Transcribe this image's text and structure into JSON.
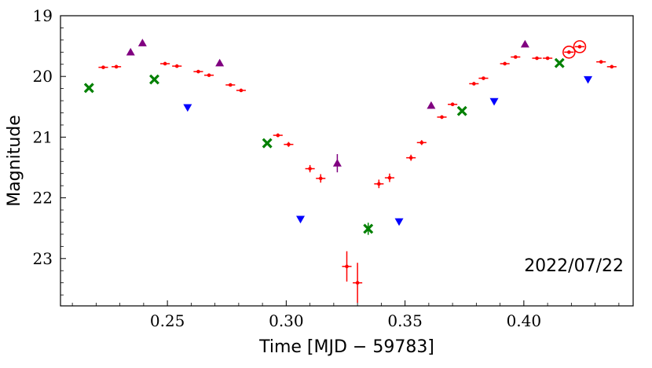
{
  "chart_data": {
    "type": "scatter",
    "title": "",
    "xlabel": "Time [MJD − 59783]",
    "ylabel": "Magnitude",
    "xlim": [
      0.205,
      0.446
    ],
    "ylim": [
      23.78,
      19.0
    ],
    "y_inverted": true,
    "grid": false,
    "annotation": "2022/07/22",
    "x_ticks": [
      {
        "value": 0.25,
        "label": "0.25"
      },
      {
        "value": 0.3,
        "label": "0.30"
      },
      {
        "value": 0.35,
        "label": "0.35"
      },
      {
        "value": 0.4,
        "label": "0.40"
      }
    ],
    "y_ticks": [
      {
        "value": 19,
        "label": "19"
      },
      {
        "value": 20,
        "label": "20"
      },
      {
        "value": 21,
        "label": "21"
      },
      {
        "value": 22,
        "label": "22"
      },
      {
        "value": 23,
        "label": "23"
      }
    ],
    "series": [
      {
        "name": "red",
        "marker": "point",
        "color": "#ff0000",
        "points": [
          {
            "x": 0.223,
            "y": 19.85,
            "xerr": 0.002,
            "yerr": 0.01
          },
          {
            "x": 0.2285,
            "y": 19.84,
            "xerr": 0.002,
            "yerr": 0.01
          },
          {
            "x": 0.249,
            "y": 19.79,
            "xerr": 0.002,
            "yerr": 0.01
          },
          {
            "x": 0.254,
            "y": 19.83,
            "xerr": 0.002,
            "yerr": 0.01
          },
          {
            "x": 0.263,
            "y": 19.92,
            "xerr": 0.002,
            "yerr": 0.01
          },
          {
            "x": 0.2675,
            "y": 19.98,
            "xerr": 0.002,
            "yerr": 0.01
          },
          {
            "x": 0.2765,
            "y": 20.14,
            "xerr": 0.002,
            "yerr": 0.01
          },
          {
            "x": 0.281,
            "y": 20.23,
            "xerr": 0.002,
            "yerr": 0.01
          },
          {
            "x": 0.2965,
            "y": 20.97,
            "xerr": 0.002,
            "yerr": 0.03
          },
          {
            "x": 0.301,
            "y": 21.12,
            "xerr": 0.002,
            "yerr": 0.04
          },
          {
            "x": 0.31,
            "y": 21.52,
            "xerr": 0.002,
            "yerr": 0.06
          },
          {
            "x": 0.3145,
            "y": 21.68,
            "xerr": 0.002,
            "yerr": 0.07
          },
          {
            "x": 0.3255,
            "y": 23.13,
            "xerr": 0.002,
            "yerr": 0.25
          },
          {
            "x": 0.33,
            "y": 23.4,
            "xerr": 0.002,
            "yerr": 0.33
          },
          {
            "x": 0.339,
            "y": 21.77,
            "xerr": 0.002,
            "yerr": 0.07
          },
          {
            "x": 0.3435,
            "y": 21.67,
            "xerr": 0.002,
            "yerr": 0.07
          },
          {
            "x": 0.3525,
            "y": 21.34,
            "xerr": 0.002,
            "yerr": 0.05
          },
          {
            "x": 0.357,
            "y": 21.09,
            "xerr": 0.002,
            "yerr": 0.04
          },
          {
            "x": 0.3655,
            "y": 20.67,
            "xerr": 0.002,
            "yerr": 0.03
          },
          {
            "x": 0.37,
            "y": 20.46,
            "xerr": 0.002,
            "yerr": 0.02
          },
          {
            "x": 0.379,
            "y": 20.12,
            "xerr": 0.002,
            "yerr": 0.01
          },
          {
            "x": 0.383,
            "y": 20.03,
            "xerr": 0.002,
            "yerr": 0.01
          },
          {
            "x": 0.392,
            "y": 19.79,
            "xerr": 0.002,
            "yerr": 0.01
          },
          {
            "x": 0.3965,
            "y": 19.68,
            "xerr": 0.002,
            "yerr": 0.01
          },
          {
            "x": 0.4055,
            "y": 19.7,
            "xerr": 0.002,
            "yerr": 0.01
          },
          {
            "x": 0.41,
            "y": 19.7,
            "xerr": 0.002,
            "yerr": 0.01
          },
          {
            "x": 0.419,
            "y": 19.6,
            "xerr": 0.002,
            "yerr": 0.01,
            "circled": true
          },
          {
            "x": 0.4235,
            "y": 19.51,
            "xerr": 0.002,
            "yerr": 0.01,
            "circled": true
          },
          {
            "x": 0.4325,
            "y": 19.76,
            "xerr": 0.002,
            "yerr": 0.01
          },
          {
            "x": 0.437,
            "y": 19.84,
            "xerr": 0.002,
            "yerr": 0.01
          }
        ]
      },
      {
        "name": "green",
        "marker": "x-filled",
        "color": "#008000",
        "points": [
          {
            "x": 0.217,
            "y": 20.19,
            "yerr": 0.01
          },
          {
            "x": 0.2445,
            "y": 20.05,
            "yerr": 0.01
          },
          {
            "x": 0.292,
            "y": 21.1,
            "yerr": 0.02
          },
          {
            "x": 0.3345,
            "y": 22.51,
            "yerr": 0.1
          },
          {
            "x": 0.374,
            "y": 20.57,
            "yerr": 0.01
          },
          {
            "x": 0.415,
            "y": 19.78,
            "yerr": 0.01
          }
        ]
      },
      {
        "name": "purple",
        "marker": "triangle-up",
        "color": "#800080",
        "points": [
          {
            "x": 0.2345,
            "y": 19.6,
            "yerr": 0.01
          },
          {
            "x": 0.2395,
            "y": 19.45,
            "yerr": 0.01
          },
          {
            "x": 0.272,
            "y": 19.78,
            "yerr": 0.01
          },
          {
            "x": 0.3215,
            "y": 21.43,
            "yerr": 0.15
          },
          {
            "x": 0.361,
            "y": 20.48,
            "yerr": 0.05
          },
          {
            "x": 0.4005,
            "y": 19.47,
            "yerr": 0.01
          }
        ]
      },
      {
        "name": "blue",
        "marker": "triangle-down",
        "color": "#0000ff",
        "points": [
          {
            "x": 0.2585,
            "y": 20.51,
            "yerr": 0.01
          },
          {
            "x": 0.306,
            "y": 22.35,
            "yerr": 0.05
          },
          {
            "x": 0.3475,
            "y": 22.39,
            "yerr": 0.05
          },
          {
            "x": 0.3875,
            "y": 20.41,
            "yerr": 0.01
          },
          {
            "x": 0.427,
            "y": 20.05,
            "yerr": 0.01
          }
        ]
      }
    ]
  }
}
